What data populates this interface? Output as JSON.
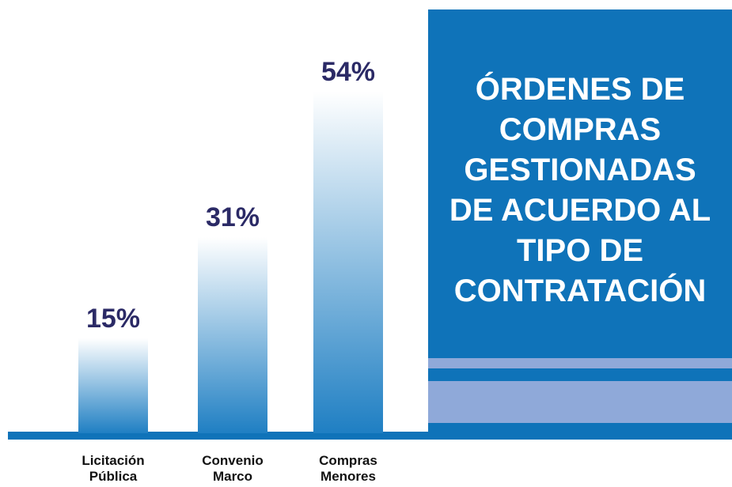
{
  "chart_data": {
    "type": "bar",
    "title": "ÓRDENES DE\nCOMPRAS\nGESTIONADAS\nDE ACUERDO AL\nTIPO DE\nCONTRATACIÓN",
    "categories": [
      "Licitación\nPública",
      "Convenio\nMarco",
      "Compras\nMenores"
    ],
    "values": [
      15,
      31,
      54
    ],
    "value_labels": [
      "15%",
      "31%",
      "54%"
    ],
    "color": "#1f7fc3"
  }
}
